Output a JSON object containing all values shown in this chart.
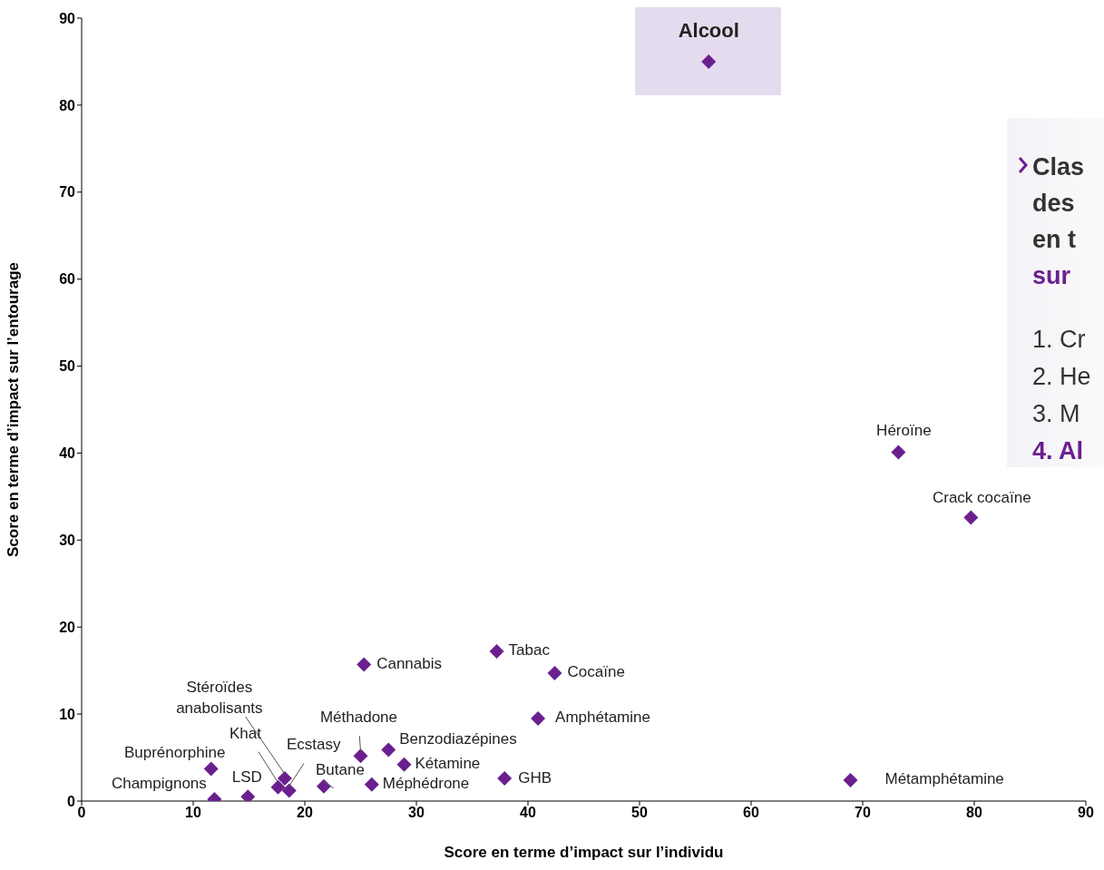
{
  "chart_data": {
    "type": "scatter",
    "xlabel": "Score en terme d’impact sur l’individu",
    "ylabel": "Score en terme d’impact sur l’entourage",
    "xlim": [
      0,
      90
    ],
    "xticks": [
      0,
      10,
      20,
      30,
      40,
      50,
      60,
      70,
      80,
      90
    ],
    "ylim": [
      0,
      90
    ],
    "yticks": [
      0,
      10,
      20,
      30,
      40,
      50,
      60,
      70,
      80,
      90
    ],
    "grid": false,
    "marker": "diamond",
    "series": [
      {
        "color": "#6b1f8f",
        "x": [
          56.2,
          73.2,
          79.7,
          68.9,
          37.2,
          25.3,
          42.4,
          40.9,
          37.9,
          27.5,
          28.9,
          25.0,
          26.0,
          21.7,
          18.6,
          17.6,
          18.2,
          14.9,
          11.9,
          11.6
        ],
        "values": [
          85.0,
          40.1,
          32.6,
          2.4,
          17.2,
          15.7,
          14.7,
          9.5,
          2.6,
          5.9,
          4.2,
          5.2,
          1.9,
          1.7,
          1.2,
          1.6,
          2.6,
          0.5,
          0.2,
          3.7
        ]
      }
    ],
    "annotations": [
      {
        "text": "Alcool",
        "x": 56.2,
        "y": 85.0
      },
      {
        "text": "Héroïne",
        "x": 73.2,
        "y": 40.1
      },
      {
        "text": "Crack cocaïne",
        "x": 79.7,
        "y": 32.6
      },
      {
        "text": "Métamphétamine",
        "x": 68.9,
        "y": 2.4
      },
      {
        "text": "Tabac",
        "x": 37.2,
        "y": 17.2
      },
      {
        "text": "Cannabis",
        "x": 25.3,
        "y": 15.7
      },
      {
        "text": "Cocaïne",
        "x": 42.4,
        "y": 14.7
      },
      {
        "text": "Amphétamine",
        "x": 40.9,
        "y": 9.5
      },
      {
        "text": "GHB",
        "x": 37.9,
        "y": 2.6
      },
      {
        "text": "Benzodiazépines",
        "x": 27.5,
        "y": 5.9
      },
      {
        "text": "Kétamine",
        "x": 28.9,
        "y": 4.2
      },
      {
        "text": "Méthadone",
        "x": 25.0,
        "y": 5.2
      },
      {
        "text": "Méphédrone",
        "x": 26.0,
        "y": 1.9
      },
      {
        "text": "Butane",
        "x": 21.7,
        "y": 1.7
      },
      {
        "text": "Ecstasy",
        "x": 18.6,
        "y": 1.2
      },
      {
        "text": "Khat",
        "x": 17.6,
        "y": 1.6
      },
      {
        "text": "Stéroïdes anabolisants",
        "x": 18.2,
        "y": 2.6
      },
      {
        "text": "LSD",
        "x": 14.9,
        "y": 0.5
      },
      {
        "text": "Champignons",
        "x": 11.9,
        "y": 0.2
      },
      {
        "text": "Buprénorphine",
        "x": 11.6,
        "y": 3.7
      },
      "Clas",
      "des",
      "en t",
      "sur",
      "1. Cr",
      "2. He",
      "3. M",
      "4. Al"
    ]
  }
}
